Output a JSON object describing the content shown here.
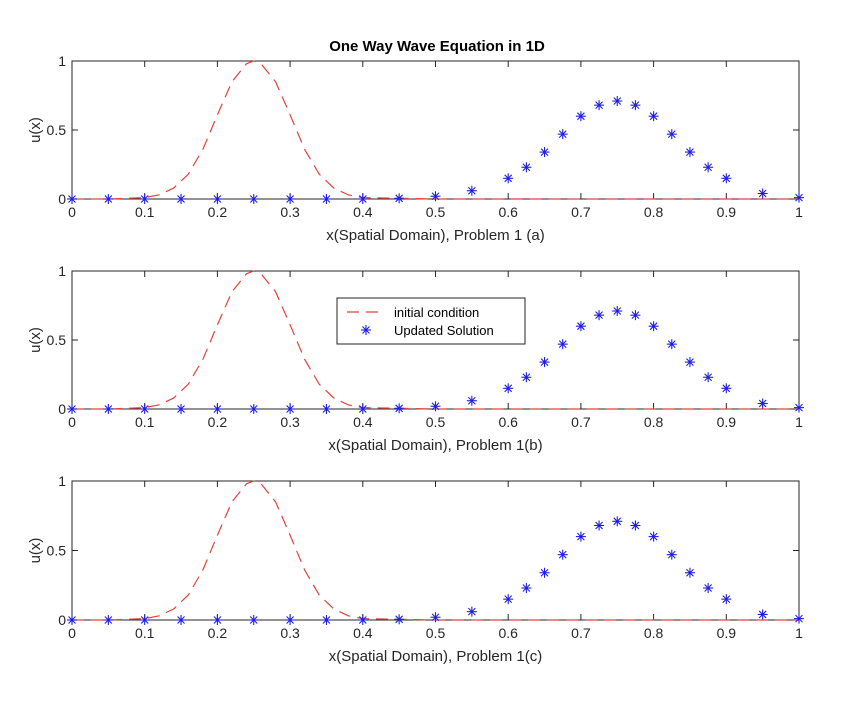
{
  "figure": {
    "title": "One Way Wave Equation in 1D"
  },
  "chart_data": [
    {
      "type": "line",
      "title": "One Way Wave Equation in 1D",
      "xlabel": "x(Spatial Domain), Problem 1 (a)",
      "ylabel": "u(x)",
      "xlim": [
        0,
        1
      ],
      "ylim": [
        0,
        1
      ],
      "xticks": [
        "0",
        "0.1",
        "0.2",
        "0.3",
        "0.4",
        "0.5",
        "0.6",
        "0.7",
        "0.8",
        "0.9",
        "1"
      ],
      "yticks": [
        "0",
        "0.5",
        "1"
      ],
      "grid": false,
      "series": [
        {
          "name": "initial condition",
          "style": "dashed",
          "color": "#e0443a",
          "x": [
            0,
            0.05,
            0.1,
            0.12,
            0.14,
            0.16,
            0.18,
            0.2,
            0.22,
            0.24,
            0.25,
            0.26,
            0.28,
            0.3,
            0.32,
            0.34,
            0.36,
            0.38,
            0.4,
            0.5,
            0.6,
            0.7,
            0.8,
            0.9,
            1
          ],
          "values": [
            0,
            0,
            0.01,
            0.03,
            0.08,
            0.18,
            0.36,
            0.61,
            0.85,
            0.98,
            1,
            0.98,
            0.85,
            0.61,
            0.36,
            0.18,
            0.08,
            0.03,
            0.01,
            0,
            0,
            0,
            0,
            0,
            0
          ]
        },
        {
          "name": "Updated Solution",
          "style": "markers-asterisk",
          "color": "#1f1fe0",
          "x": [
            0,
            0.05,
            0.1,
            0.15,
            0.2,
            0.25,
            0.3,
            0.35,
            0.4,
            0.45,
            0.5,
            0.55,
            0.6,
            0.625,
            0.65,
            0.675,
            0.7,
            0.725,
            0.75,
            0.775,
            0.8,
            0.825,
            0.85,
            0.875,
            0.9,
            0.95,
            1
          ],
          "values": [
            0,
            0,
            0,
            0,
            0,
            0,
            0,
            0,
            0,
            0.005,
            0.02,
            0.06,
            0.15,
            0.23,
            0.34,
            0.47,
            0.6,
            0.68,
            0.71,
            0.68,
            0.6,
            0.47,
            0.34,
            0.23,
            0.15,
            0.04,
            0.01
          ]
        }
      ]
    },
    {
      "type": "line",
      "title": "",
      "xlabel": "x(Spatial Domain), Problem 1(b)",
      "ylabel": "u(x)",
      "xlim": [
        0,
        1
      ],
      "ylim": [
        0,
        1
      ],
      "xticks": [
        "0",
        "0.1",
        "0.2",
        "0.3",
        "0.4",
        "0.5",
        "0.6",
        "0.7",
        "0.8",
        "0.9",
        "1"
      ],
      "yticks": [
        "0",
        "0.5",
        "1"
      ],
      "grid": false,
      "legend": "top-center",
      "legend_entries": [
        "initial condition",
        "Updated Solution"
      ],
      "series": [
        {
          "name": "initial condition",
          "style": "dashed",
          "color": "#e0443a",
          "x": [
            0,
            0.05,
            0.1,
            0.12,
            0.14,
            0.16,
            0.18,
            0.2,
            0.22,
            0.24,
            0.25,
            0.26,
            0.28,
            0.3,
            0.32,
            0.34,
            0.36,
            0.38,
            0.4,
            0.5,
            0.6,
            0.7,
            0.8,
            0.9,
            1
          ],
          "values": [
            0,
            0,
            0.01,
            0.03,
            0.08,
            0.18,
            0.36,
            0.61,
            0.85,
            0.98,
            1,
            0.98,
            0.85,
            0.61,
            0.36,
            0.18,
            0.08,
            0.03,
            0.01,
            0,
            0,
            0,
            0,
            0,
            0
          ]
        },
        {
          "name": "Updated Solution",
          "style": "markers-asterisk",
          "color": "#1f1fe0",
          "x": [
            0,
            0.05,
            0.1,
            0.15,
            0.2,
            0.25,
            0.3,
            0.35,
            0.4,
            0.45,
            0.5,
            0.55,
            0.6,
            0.625,
            0.65,
            0.675,
            0.7,
            0.725,
            0.75,
            0.775,
            0.8,
            0.825,
            0.85,
            0.875,
            0.9,
            0.95,
            1
          ],
          "values": [
            0,
            0,
            0,
            0,
            0,
            0,
            0,
            0,
            0,
            0.005,
            0.02,
            0.06,
            0.15,
            0.23,
            0.34,
            0.47,
            0.6,
            0.68,
            0.71,
            0.68,
            0.6,
            0.47,
            0.34,
            0.23,
            0.15,
            0.04,
            0.01
          ]
        }
      ]
    },
    {
      "type": "line",
      "title": "",
      "xlabel": "x(Spatial Domain), Problem 1(c)",
      "ylabel": "u(x)",
      "xlim": [
        0,
        1
      ],
      "ylim": [
        0,
        1
      ],
      "xticks": [
        "0",
        "0.1",
        "0.2",
        "0.3",
        "0.4",
        "0.5",
        "0.6",
        "0.7",
        "0.8",
        "0.9",
        "1"
      ],
      "yticks": [
        "0",
        "0.5",
        "1"
      ],
      "grid": false,
      "series": [
        {
          "name": "initial condition",
          "style": "dashed",
          "color": "#e0443a",
          "x": [
            0,
            0.05,
            0.1,
            0.12,
            0.14,
            0.16,
            0.18,
            0.2,
            0.22,
            0.24,
            0.25,
            0.26,
            0.28,
            0.3,
            0.32,
            0.34,
            0.36,
            0.38,
            0.4,
            0.5,
            0.6,
            0.7,
            0.8,
            0.9,
            1
          ],
          "values": [
            0,
            0,
            0.01,
            0.03,
            0.08,
            0.18,
            0.36,
            0.61,
            0.85,
            0.98,
            1,
            0.98,
            0.85,
            0.61,
            0.36,
            0.18,
            0.08,
            0.03,
            0.01,
            0,
            0,
            0,
            0,
            0,
            0
          ]
        },
        {
          "name": "Updated Solution",
          "style": "markers-asterisk",
          "color": "#1f1fe0",
          "x": [
            0,
            0.05,
            0.1,
            0.15,
            0.2,
            0.25,
            0.3,
            0.35,
            0.4,
            0.45,
            0.5,
            0.55,
            0.6,
            0.625,
            0.65,
            0.675,
            0.7,
            0.725,
            0.75,
            0.775,
            0.8,
            0.825,
            0.85,
            0.875,
            0.9,
            0.95,
            1
          ],
          "values": [
            0,
            0,
            0,
            0,
            0,
            0,
            0,
            0,
            0,
            0.005,
            0.02,
            0.06,
            0.15,
            0.23,
            0.34,
            0.47,
            0.6,
            0.68,
            0.71,
            0.68,
            0.6,
            0.47,
            0.34,
            0.23,
            0.15,
            0.04,
            0.01
          ]
        }
      ]
    }
  ]
}
